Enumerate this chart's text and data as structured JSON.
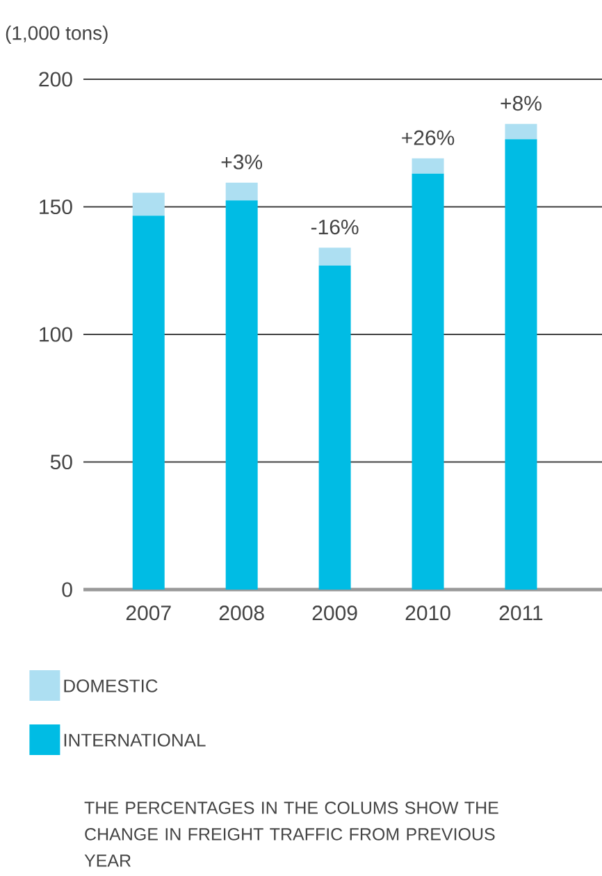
{
  "chart_data": {
    "type": "bar",
    "stacked": true,
    "ylabel": "(1,000 tons)",
    "categories": [
      "2007",
      "2008",
      "2009",
      "2010",
      "2011"
    ],
    "series": [
      {
        "name": "INTERNATIONAL",
        "color": "#00bce4",
        "values": [
          146.5,
          152.5,
          127,
          163,
          176.5
        ]
      },
      {
        "name": "DOMESTIC",
        "color": "#addff2",
        "values": [
          9,
          7,
          7,
          6,
          6
        ]
      }
    ],
    "ylim": [
      0,
      200
    ],
    "yticks": [
      0,
      50,
      100,
      150,
      200
    ],
    "grid": "y",
    "legend": "bottom left",
    "annotations": [
      {
        "text": "+3%",
        "x": "2008",
        "y": 159.5
      },
      {
        "text": "-16%",
        "x": "2009",
        "y": 134
      },
      {
        "text": "+26%",
        "x": "2010",
        "y": 169
      },
      {
        "text": "+8%",
        "x": "2011",
        "y": 182.5
      },
      "THE PERCENTAGES IN THE COLUMS SHOW THE CHANGE IN FREIGHT TRAFFIC FROM PREVIOUS YEAR"
    ]
  }
}
